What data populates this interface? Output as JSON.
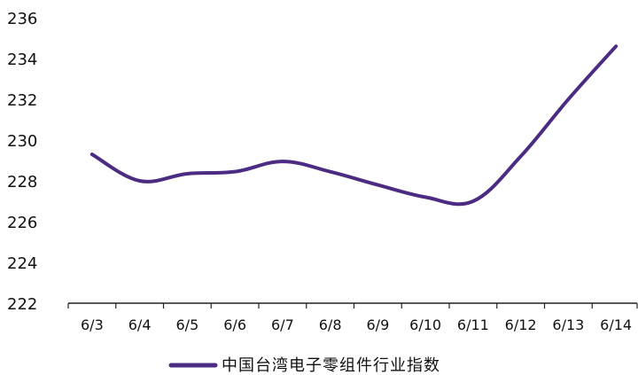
{
  "chart_data": {
    "type": "line",
    "categories": [
      "6/3",
      "6/4",
      "6/5",
      "6/6",
      "6/7",
      "6/8",
      "6/9",
      "6/10",
      "6/11",
      "6/12",
      "6/13",
      "6/14"
    ],
    "series": [
      {
        "name": "中国台湾电子零组件行业指数",
        "values": [
          229.3,
          228.0,
          228.35,
          228.45,
          228.95,
          228.45,
          227.8,
          227.2,
          227.0,
          229.2,
          232.0,
          234.6
        ],
        "color": "#4b2c82"
      }
    ],
    "ylim": [
      222,
      236
    ],
    "yticks": [
      222,
      224,
      226,
      228,
      230,
      232,
      234,
      236
    ],
    "grid": false,
    "legend": "bottom-center",
    "title": "",
    "xlabel": "",
    "ylabel": ""
  }
}
